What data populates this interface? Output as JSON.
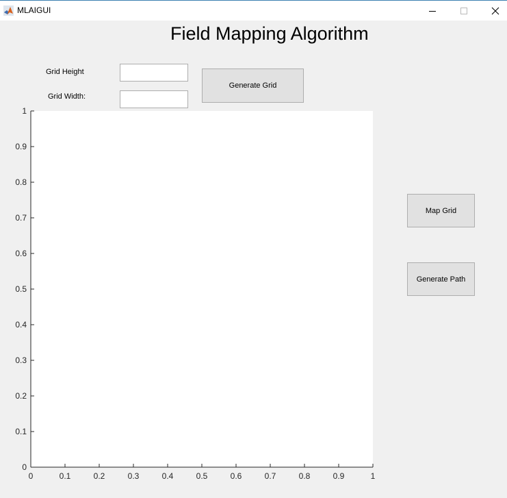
{
  "window": {
    "title": "MLAIGUI",
    "icon": "matlab-icon",
    "controls": [
      "minimize-icon",
      "maximize-icon",
      "close-icon"
    ]
  },
  "heading": "Field Mapping Algorithm",
  "form": {
    "grid_height_label": "Grid Height",
    "grid_height_value": "",
    "grid_width_label": "Grid Width:",
    "grid_width_value": ""
  },
  "buttons": {
    "generate_grid": "Generate Grid",
    "map_grid": "Map Grid",
    "generate_path": "Generate Path"
  },
  "chart_data": {
    "type": "scatter",
    "series": [],
    "xlim": [
      0,
      1
    ],
    "ylim": [
      0,
      1
    ],
    "x_ticks": [
      "0",
      "0.1",
      "0.2",
      "0.3",
      "0.4",
      "0.5",
      "0.6",
      "0.7",
      "0.8",
      "0.9",
      "1"
    ],
    "y_ticks": [
      "0",
      "0.1",
      "0.2",
      "0.3",
      "0.4",
      "0.5",
      "0.6",
      "0.7",
      "0.8",
      "0.9",
      "1"
    ],
    "grid": false,
    "title": "",
    "xlabel": "",
    "ylabel": ""
  },
  "colors": {
    "window_bg": "#f0f0f0",
    "axes_bg": "#ffffff",
    "button_bg": "#e1e1e1",
    "titlebar_accent": "#3c7fb1"
  }
}
